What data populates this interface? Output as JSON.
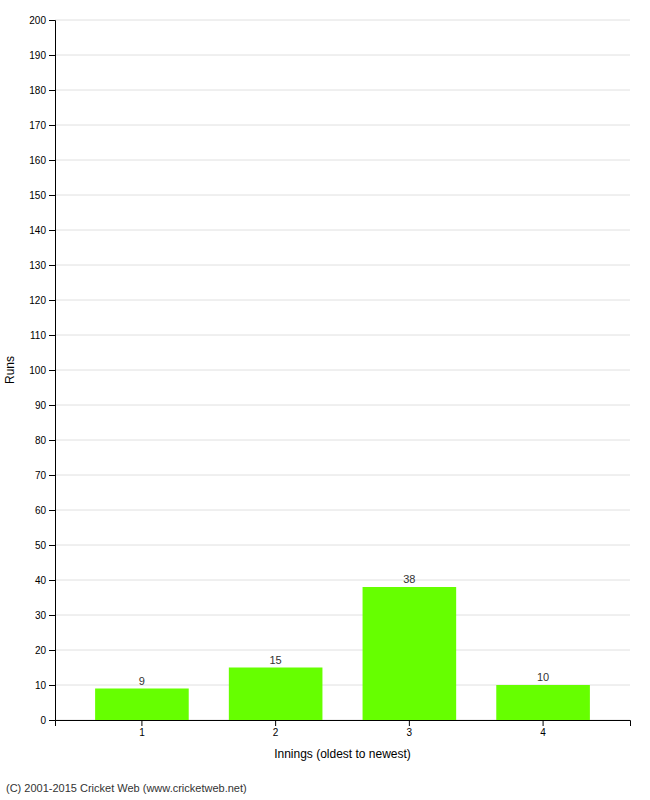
{
  "chart_data": {
    "type": "bar",
    "categories": [
      "1",
      "2",
      "3",
      "4"
    ],
    "values": [
      9,
      15,
      38,
      10
    ],
    "color": "#66ff00",
    "xlabel": "Innings (oldest to newest)",
    "ylabel": "Runs",
    "footer": "(C) 2001-2015 Cricket Web (www.cricketweb.net)",
    "ylim": [
      0,
      200
    ],
    "yticks": [
      0,
      10,
      20,
      30,
      40,
      50,
      60,
      70,
      80,
      90,
      100,
      110,
      120,
      130,
      140,
      150,
      160,
      170,
      180,
      190,
      200
    ],
    "grid": true,
    "data_labels": true
  }
}
